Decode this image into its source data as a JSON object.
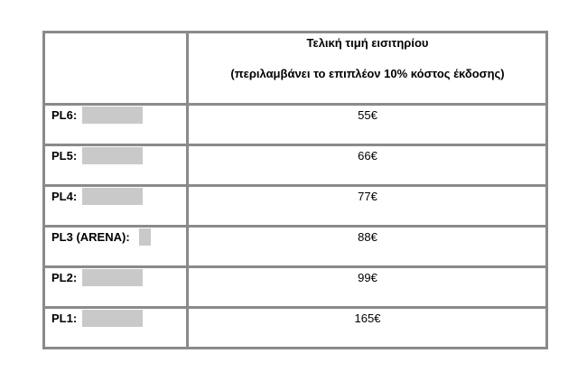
{
  "table": {
    "header": [
      "Τελική τιμή εισιτηρίου",
      "(περιλαμβάνει το επιπλέον 10% κόστος έκδοσης)"
    ],
    "rows": [
      [
        "PL6:",
        "55€"
      ],
      [
        "PL5:",
        "66€"
      ],
      [
        "PL4:",
        "77€"
      ],
      [
        "PL3 (ARENA):",
        "88€"
      ],
      [
        "PL2:",
        "99€"
      ],
      [
        "PL1:",
        "165€"
      ]
    ]
  }
}
